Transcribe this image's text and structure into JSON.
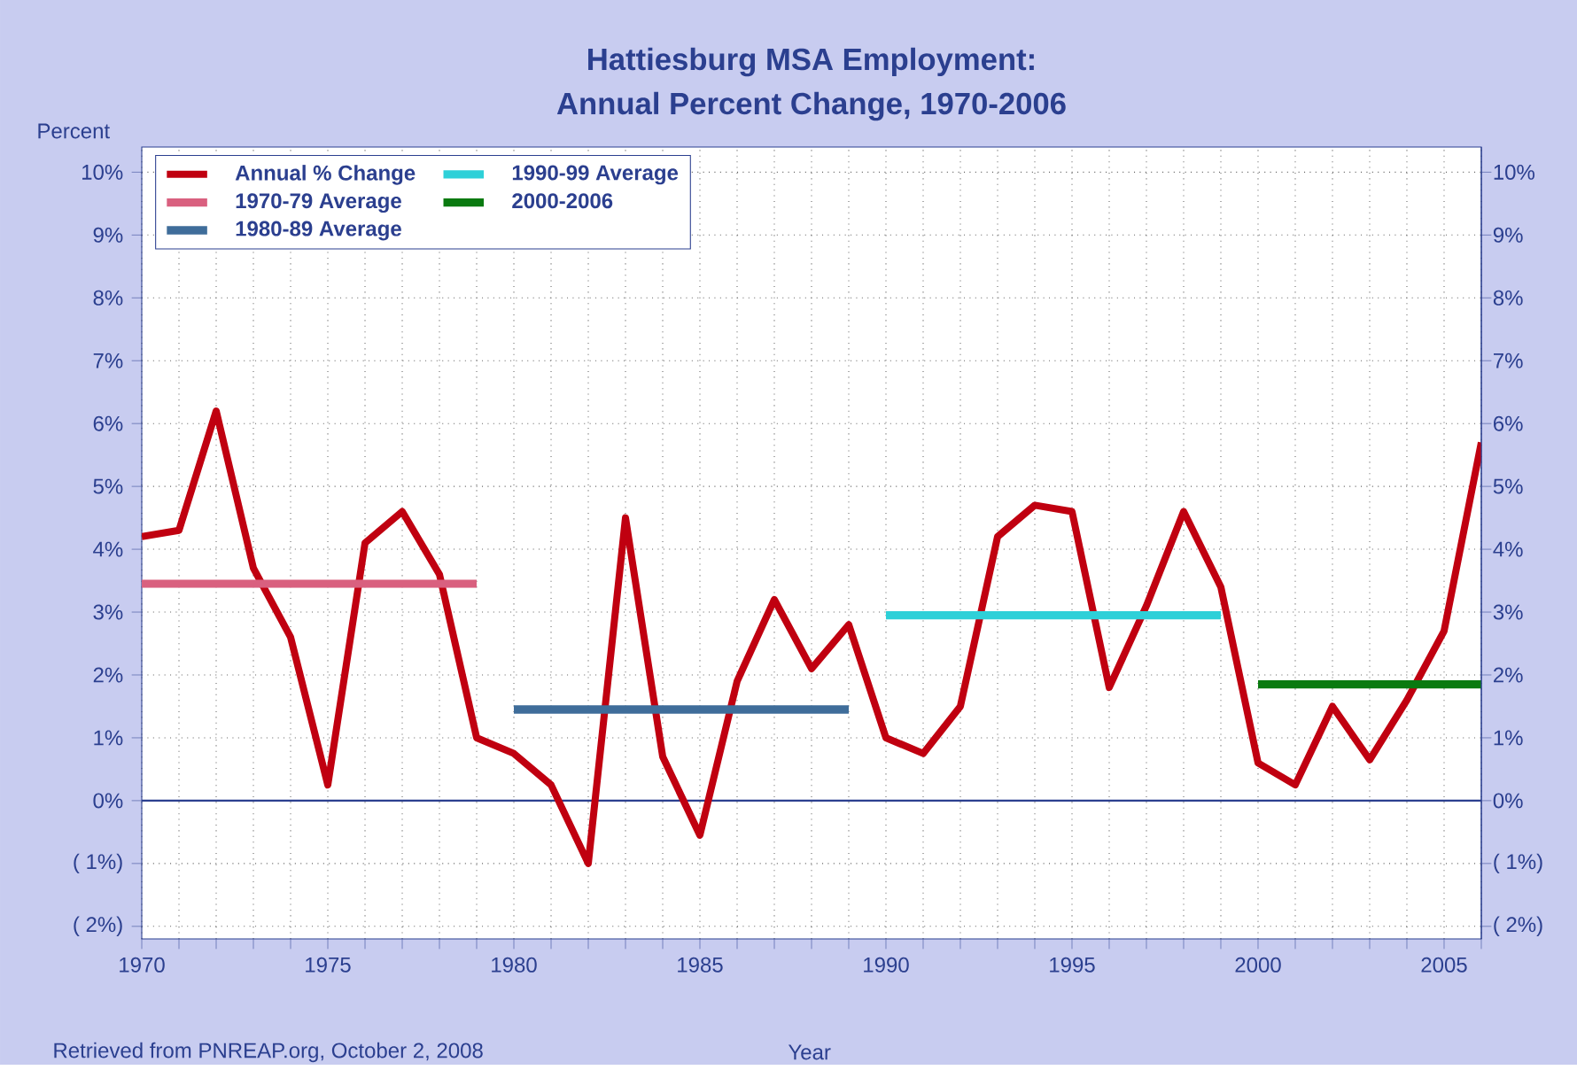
{
  "chart_data": {
    "type": "line",
    "title": "Hattiesburg MSA Employment:",
    "subtitle": "Annual Percent Change, 1970-2006",
    "ylabel": "Percent",
    "xlabel": "Year",
    "annotations": [
      "Retrieved from PNREAP.org, October 2, 2008"
    ],
    "series": [
      {
        "name": "Annual % Change",
        "color": "#c00010",
        "x": [
          1970,
          1971,
          1972,
          1973,
          1974,
          1975,
          1976,
          1977,
          1978,
          1979,
          1980,
          1981,
          1982,
          1983,
          1984,
          1985,
          1986,
          1987,
          1988,
          1989,
          1990,
          1991,
          1992,
          1993,
          1994,
          1995,
          1996,
          1997,
          1998,
          1999,
          2000,
          2001,
          2002,
          2003,
          2004,
          2005,
          2006
        ],
        "values": [
          4.2,
          4.3,
          6.2,
          3.7,
          2.6,
          0.25,
          4.1,
          4.6,
          3.6,
          1.0,
          0.75,
          0.25,
          -1.0,
          4.5,
          0.7,
          -0.55,
          1.9,
          3.2,
          2.1,
          2.8,
          1.0,
          0.75,
          1.5,
          4.2,
          4.7,
          4.6,
          1.8,
          3.1,
          4.6,
          3.4,
          0.6,
          0.25,
          1.5,
          0.65,
          1.6,
          2.7,
          5.7
        ]
      },
      {
        "name": "1970-79 Average",
        "color": "#d9607f",
        "x": [
          1970,
          1979
        ],
        "values": [
          3.45,
          3.45
        ]
      },
      {
        "name": "1980-89 Average",
        "color": "#3f6d9a",
        "x": [
          1980,
          1989
        ],
        "values": [
          1.45,
          1.45
        ]
      },
      {
        "name": "1990-99 Average",
        "color": "#2ed0d8",
        "x": [
          1990,
          1999
        ],
        "values": [
          2.95,
          2.95
        ]
      },
      {
        "name": "2000-2006",
        "color": "#0a7a10",
        "x": [
          2000,
          2006
        ],
        "values": [
          1.85,
          1.85
        ]
      }
    ],
    "xlim": [
      1970,
      2006
    ],
    "xticks": [
      1970,
      {
        "value": 1971,
        "label": null
      },
      {
        "value": 1972,
        "label": null
      },
      {
        "value": 1973,
        "label": null
      },
      {
        "value": 1974,
        "label": null
      },
      1975,
      {
        "value": 1976,
        "label": null
      },
      {
        "value": 1977,
        "label": null
      },
      {
        "value": 1978,
        "label": null
      },
      {
        "value": 1979,
        "label": null
      },
      1980,
      {
        "value": 1981,
        "label": null
      },
      {
        "value": 1982,
        "label": null
      },
      {
        "value": 1983,
        "label": null
      },
      {
        "value": 1984,
        "label": null
      },
      1985,
      {
        "value": 1986,
        "label": null
      },
      {
        "value": 1987,
        "label": null
      },
      {
        "value": 1988,
        "label": null
      },
      {
        "value": 1989,
        "label": null
      },
      1990,
      {
        "value": 1991,
        "label": null
      },
      {
        "value": 1992,
        "label": null
      },
      {
        "value": 1993,
        "label": null
      },
      {
        "value": 1994,
        "label": null
      },
      1995,
      {
        "value": 1996,
        "label": null
      },
      {
        "value": 1997,
        "label": null
      },
      {
        "value": 1998,
        "label": null
      },
      {
        "value": 1999,
        "label": null
      },
      2000,
      {
        "value": 2001,
        "label": null
      },
      {
        "value": 2002,
        "label": null
      },
      {
        "value": 2003,
        "label": null
      },
      {
        "value": 2004,
        "label": null
      },
      2005,
      {
        "value": 2006,
        "label": null
      }
    ],
    "ylim": [
      -2.2,
      10.4
    ],
    "yticks": [
      {
        "value": -2,
        "label": "( 2%)"
      },
      {
        "value": -1,
        "label": "( 1%)"
      },
      {
        "value": 0,
        "label": "0%"
      },
      {
        "value": 1,
        "label": "1%"
      },
      {
        "value": 2,
        "label": "2%"
      },
      {
        "value": 3,
        "label": "3%"
      },
      {
        "value": 4,
        "label": "4%"
      },
      {
        "value": 5,
        "label": "5%"
      },
      {
        "value": 6,
        "label": "6%"
      },
      {
        "value": 7,
        "label": "7%"
      },
      {
        "value": 8,
        "label": "8%"
      },
      {
        "value": 9,
        "label": "9%"
      },
      {
        "value": 10,
        "label": "10%"
      }
    ],
    "y2lim": [
      -2.2,
      10.4
    ],
    "y2ticks": [
      {
        "value": -2,
        "label": "( 2%)"
      },
      {
        "value": -1,
        "label": "( 1%)"
      },
      {
        "value": 0,
        "label": "0%"
      },
      {
        "value": 1,
        "label": "1%"
      },
      {
        "value": 2,
        "label": "2%"
      },
      {
        "value": 3,
        "label": "3%"
      },
      {
        "value": 4,
        "label": "4%"
      },
      {
        "value": 5,
        "label": "5%"
      },
      {
        "value": 6,
        "label": "6%"
      },
      {
        "value": 7,
        "label": "7%"
      },
      {
        "value": 8,
        "label": "8%"
      },
      {
        "value": 9,
        "label": "9%"
      },
      {
        "value": 10,
        "label": "10%"
      }
    ],
    "ref_lines": [
      {
        "axis": "y",
        "value": 0,
        "color": "#2b3f8f"
      }
    ],
    "grid": true,
    "legend": "top left",
    "marker": "none",
    "line_style": "solid"
  }
}
